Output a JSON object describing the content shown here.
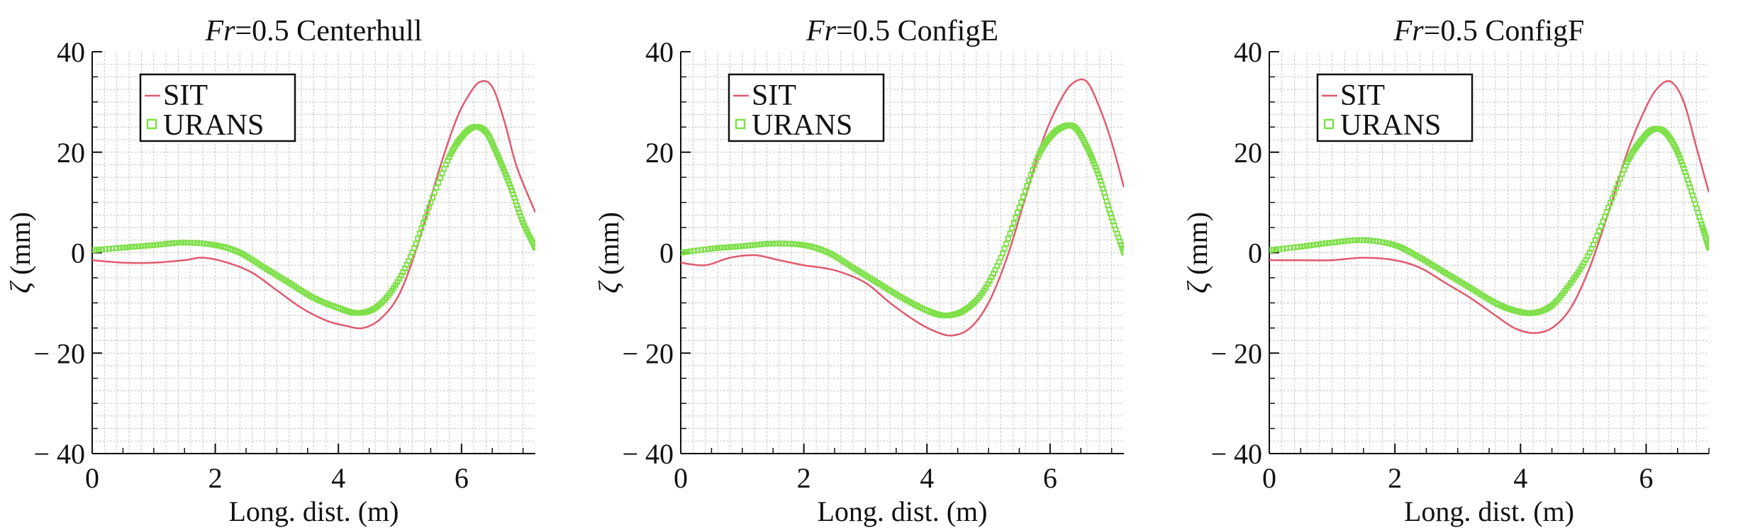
{
  "figure": {
    "colors": {
      "sit": "#e05a6e",
      "urans": "#7fe04a",
      "grid": "#c8c8c8",
      "axis": "#111111"
    },
    "legend_location": "upper-left"
  },
  "chart_data": [
    {
      "type": "line",
      "title_prefix": "Fr",
      "title_rest": "=0.5 Centerhull",
      "xlabel": "Long. dist. (m)",
      "ylabel_symbol": "ζ",
      "ylabel_unit": " (mm)",
      "xlim": [
        0,
        7.2
      ],
      "ylim": [
        -40,
        40
      ],
      "xticks": [
        0,
        2,
        4,
        6
      ],
      "yticks": [
        40,
        20,
        0,
        -20,
        -40
      ],
      "ytick_labels": [
        "40",
        "20",
        "0",
        "− 20",
        "− 40"
      ],
      "grid": true,
      "legend": [
        "SIT",
        "URANS"
      ],
      "series": [
        {
          "name": "SIT",
          "style": "line",
          "color": "#e05a6e",
          "x": [
            0,
            0.5,
            1.0,
            1.5,
            1.8,
            2.2,
            2.6,
            3.0,
            3.4,
            3.8,
            4.1,
            4.4,
            4.7,
            5.0,
            5.3,
            5.6,
            5.9,
            6.1,
            6.3,
            6.5,
            6.7,
            6.9,
            7.2
          ],
          "y": [
            -1.5,
            -2,
            -2,
            -1.5,
            -1,
            -2,
            -4,
            -7.5,
            -11,
            -13.5,
            -14.5,
            -15,
            -13,
            -8,
            2,
            15,
            26,
            31,
            34,
            33,
            26,
            17,
            8
          ]
        },
        {
          "name": "URANS",
          "style": "markers",
          "color": "#7fe04a",
          "x": [
            0,
            0.5,
            1.0,
            1.5,
            2.0,
            2.4,
            2.8,
            3.2,
            3.6,
            4.0,
            4.3,
            4.6,
            4.9,
            5.2,
            5.5,
            5.8,
            6.0,
            6.2,
            6.4,
            6.6,
            6.8,
            7.0,
            7.2
          ],
          "y": [
            0.5,
            1,
            1.5,
            2,
            1.5,
            0,
            -3,
            -6,
            -9,
            -11,
            -12,
            -11,
            -7,
            0,
            10,
            19,
            23,
            25,
            24,
            19,
            13,
            6,
            1
          ]
        }
      ]
    },
    {
      "type": "line",
      "title_prefix": "Fr",
      "title_rest": "=0.5 ConfigE",
      "xlabel": "Long. dist. (m)",
      "ylabel_symbol": "ζ",
      "ylabel_unit": " (mm)",
      "xlim": [
        0,
        7.2
      ],
      "ylim": [
        -40,
        40
      ],
      "xticks": [
        0,
        2,
        4,
        6
      ],
      "yticks": [
        40,
        20,
        0,
        -20,
        -40
      ],
      "ytick_labels": [
        "40",
        "20",
        "0",
        "− 20",
        "− 40"
      ],
      "grid": true,
      "legend": [
        "SIT",
        "URANS"
      ],
      "series": [
        {
          "name": "SIT",
          "style": "line",
          "color": "#e05a6e",
          "x": [
            0,
            0.4,
            0.8,
            1.2,
            1.6,
            2.0,
            2.5,
            3.0,
            3.4,
            3.8,
            4.1,
            4.4,
            4.7,
            5.0,
            5.3,
            5.6,
            5.9,
            6.2,
            6.4,
            6.6,
            6.8,
            7.0,
            7.2
          ],
          "y": [
            -2,
            -2.5,
            -1,
            -0.5,
            -1.5,
            -2.5,
            -3.5,
            -6,
            -10,
            -13.5,
            -15.5,
            -16.5,
            -15,
            -10,
            -1,
            11,
            23,
            31,
            34,
            34,
            29,
            22,
            13
          ]
        },
        {
          "name": "URANS",
          "style": "markers",
          "color": "#7fe04a",
          "x": [
            0,
            0.5,
            1.0,
            1.5,
            2.0,
            2.4,
            2.8,
            3.2,
            3.6,
            4.0,
            4.3,
            4.6,
            4.9,
            5.2,
            5.5,
            5.8,
            6.0,
            6.2,
            6.4,
            6.6,
            6.8,
            7.0,
            7.2
          ],
          "y": [
            0,
            0.8,
            1.3,
            1.8,
            1.5,
            0,
            -3,
            -6,
            -9,
            -11.5,
            -12.5,
            -11.5,
            -8,
            -1,
            9,
            19,
            23,
            25,
            25,
            21,
            15,
            7,
            0
          ]
        }
      ]
    },
    {
      "type": "line",
      "title_prefix": "Fr",
      "title_rest": "=0.5 ConfigF",
      "xlabel": "Long. dist. (m)",
      "ylabel_symbol": "ζ",
      "ylabel_unit": " (mm)",
      "xlim": [
        0,
        7.0
      ],
      "ylim": [
        -40,
        40
      ],
      "xticks": [
        0,
        2,
        4,
        6
      ],
      "yticks": [
        40,
        20,
        0,
        -20,
        -40
      ],
      "ytick_labels": [
        "40",
        "20",
        "0",
        "− 20",
        "− 40"
      ],
      "grid": true,
      "legend": [
        "SIT",
        "URANS"
      ],
      "series": [
        {
          "name": "SIT",
          "style": "line",
          "color": "#e05a6e",
          "x": [
            0,
            0.5,
            1.0,
            1.5,
            2.0,
            2.4,
            2.8,
            3.2,
            3.6,
            3.9,
            4.2,
            4.5,
            4.8,
            5.1,
            5.4,
            5.7,
            6.0,
            6.2,
            6.4,
            6.6,
            6.8,
            7.0
          ],
          "y": [
            -1.5,
            -1.5,
            -1.5,
            -1,
            -1.5,
            -3,
            -6,
            -9,
            -12.5,
            -15,
            -16,
            -15,
            -11,
            -3,
            8,
            20,
            29,
            33,
            34,
            30,
            21,
            12
          ]
        },
        {
          "name": "URANS",
          "style": "markers",
          "color": "#7fe04a",
          "x": [
            0,
            0.5,
            1.0,
            1.5,
            2.0,
            2.4,
            2.8,
            3.2,
            3.6,
            3.9,
            4.2,
            4.5,
            4.8,
            5.1,
            5.4,
            5.7,
            5.9,
            6.1,
            6.3,
            6.5,
            6.7,
            6.9,
            7.0
          ],
          "y": [
            0.5,
            1.2,
            2,
            2.5,
            1.5,
            -1,
            -4,
            -7,
            -10,
            -11.5,
            -12,
            -10.5,
            -6,
            0,
            9,
            18,
            22,
            24.5,
            24,
            20,
            13,
            5,
            1
          ]
        }
      ]
    }
  ]
}
